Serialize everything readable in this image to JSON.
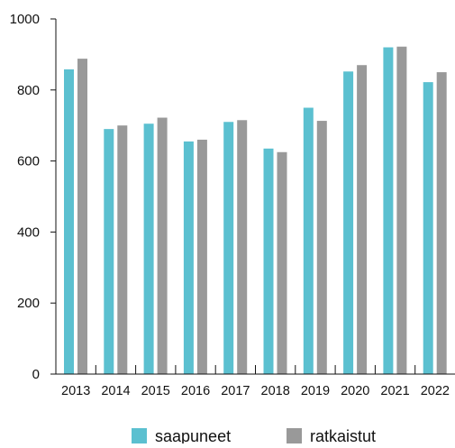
{
  "chart_data": {
    "type": "bar",
    "title": "",
    "xlabel": "",
    "ylabel": "",
    "categories": [
      "2013",
      "2014",
      "2015",
      "2016",
      "2017",
      "2018",
      "2019",
      "2020",
      "2021",
      "2022"
    ],
    "series": [
      {
        "name": "saapuneet",
        "color": "#5BC0D0",
        "values": [
          858,
          690,
          705,
          655,
          710,
          635,
          750,
          852,
          920,
          822
        ]
      },
      {
        "name": "ratkaistut",
        "color": "#999999",
        "values": [
          888,
          700,
          722,
          660,
          715,
          625,
          713,
          870,
          922,
          850
        ]
      }
    ],
    "ylim": [
      0,
      1000
    ],
    "yticks": [
      "0",
      "200",
      "400",
      "600",
      "800",
      "1000"
    ],
    "grid": false,
    "legend_position": "bottom-center"
  }
}
